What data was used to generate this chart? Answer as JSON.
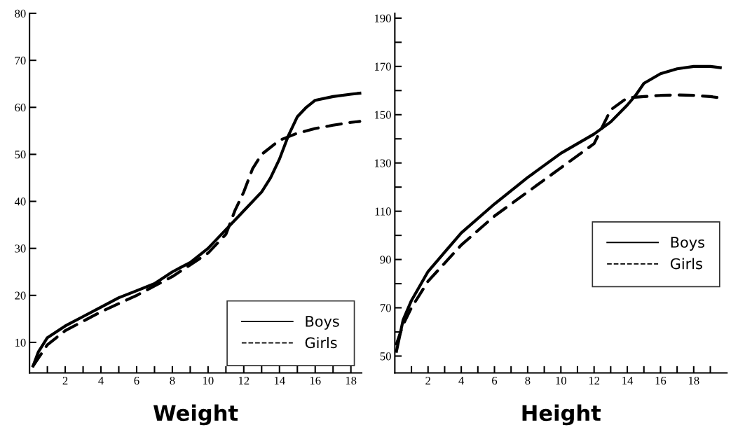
{
  "chart_data": [
    {
      "type": "line",
      "xlabel": "Weight",
      "xlim": [
        0,
        18.6
      ],
      "ylim": [
        3.5,
        80
      ],
      "legend": "bottom right",
      "grid": false,
      "marker": "none",
      "xticks": [
        {
          "value": 1,
          "label": null
        },
        2,
        {
          "value": 3,
          "label": null
        },
        4,
        {
          "value": 5,
          "label": null
        },
        6,
        {
          "value": 7,
          "label": null
        },
        8,
        {
          "value": 9,
          "label": null
        },
        10,
        {
          "value": 11,
          "label": null
        },
        12,
        {
          "value": 13,
          "label": null
        },
        14,
        {
          "value": 15,
          "label": null
        },
        16,
        {
          "value": 17,
          "label": null
        },
        18
      ],
      "yticks": [
        10,
        20,
        30,
        40,
        50,
        60,
        70,
        80
      ],
      "series": [
        {
          "name": "Boys",
          "color": "#000000",
          "line_style": "solid",
          "x": [
            0.2,
            0.5,
            1,
            2,
            3,
            4,
            5,
            6,
            7,
            8,
            9,
            10,
            11,
            12,
            13,
            13.5,
            14,
            14.5,
            15,
            15.5,
            16,
            17,
            18,
            18.5
          ],
          "values": [
            5,
            8,
            11,
            13.5,
            15.5,
            17.5,
            19.5,
            21,
            22.5,
            25,
            27,
            30,
            34,
            38,
            42,
            45,
            49,
            54,
            58,
            60,
            61.5,
            62.3,
            62.8,
            63
          ]
        },
        {
          "name": "Girls",
          "color": "#000000",
          "line_style": "dashed",
          "x": [
            0.2,
            1,
            2,
            4,
            6,
            8,
            10,
            11,
            11.5,
            12,
            12.5,
            13,
            14,
            15,
            16,
            17,
            18,
            18.5
          ],
          "values": [
            5,
            9.5,
            12.5,
            16.5,
            20,
            24,
            29,
            33,
            38,
            42,
            47,
            50,
            53,
            54.5,
            55.5,
            56.2,
            56.8,
            57
          ]
        }
      ]
    },
    {
      "type": "line",
      "xlabel": "Height",
      "xlim": [
        0,
        20
      ],
      "ylim": [
        43,
        192
      ],
      "legend": "right",
      "grid": false,
      "marker": "none",
      "xticks": [
        {
          "value": 1,
          "label": null
        },
        2,
        {
          "value": 3,
          "label": null
        },
        4,
        {
          "value": 5,
          "label": null
        },
        6,
        {
          "value": 7,
          "label": null
        },
        8,
        {
          "value": 9,
          "label": null
        },
        10,
        {
          "value": 11,
          "label": null
        },
        12,
        {
          "value": 13,
          "label": null
        },
        14,
        {
          "value": 15,
          "label": null
        },
        16,
        {
          "value": 17,
          "label": null
        },
        18,
        {
          "value": 19,
          "label": null
        }
      ],
      "yticks": [
        50,
        {
          "value": 60,
          "label": null
        },
        70,
        {
          "value": 80,
          "label": null
        },
        90,
        {
          "value": 100,
          "label": null
        },
        110,
        {
          "value": 120,
          "label": null
        },
        130,
        {
          "value": 140,
          "label": null
        },
        150,
        {
          "value": 160,
          "label": null
        },
        170,
        {
          "value": 180,
          "label": null
        },
        190
      ],
      "series": [
        {
          "name": "Boys",
          "color": "#000000",
          "line_style": "solid",
          "x": [
            0.1,
            0.5,
            1,
            2,
            3,
            4,
            6,
            8,
            10,
            12,
            13,
            14,
            14.5,
            15,
            16,
            17,
            18,
            19,
            19.6
          ],
          "values": [
            52,
            65,
            73,
            85,
            93,
            101,
            113,
            124,
            134,
            142,
            147,
            154,
            158,
            163,
            167,
            169,
            170,
            170,
            169.5
          ]
        },
        {
          "name": "Girls",
          "color": "#000000",
          "line_style": "dashed",
          "x": [
            0.1,
            0.5,
            1,
            2,
            4,
            6,
            8,
            10,
            12,
            12.5,
            13,
            14,
            15,
            16,
            17,
            18,
            19,
            19.6
          ],
          "values": [
            55,
            63,
            70,
            81,
            96,
            108,
            118,
            128,
            138,
            145,
            152,
            157,
            157.5,
            158,
            158.2,
            158,
            157.5,
            157
          ]
        }
      ]
    }
  ]
}
